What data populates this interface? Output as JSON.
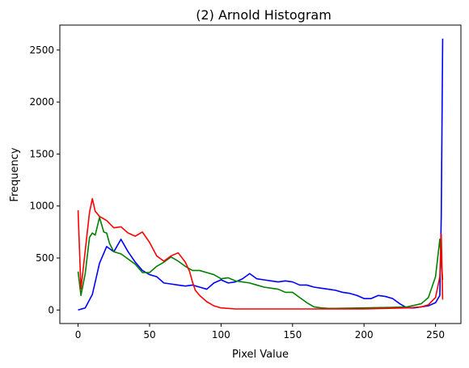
{
  "chart_data": {
    "type": "line",
    "title": "(2) Arnold Histogram",
    "xlabel": "Pixel Value",
    "ylabel": "Frequency",
    "xlim": [
      -12.75,
      267.75
    ],
    "ylim": [
      -130,
      2740
    ],
    "xticks": [
      0,
      50,
      100,
      150,
      200,
      250
    ],
    "yticks": [
      0,
      500,
      1000,
      1500,
      2000,
      2500
    ],
    "grid": false,
    "legend": "none",
    "series": [
      {
        "color": "#0000ff",
        "x": [
          0,
          5,
          10,
          15,
          20,
          25,
          30,
          35,
          40,
          45,
          50,
          55,
          60,
          65,
          70,
          75,
          80,
          85,
          90,
          95,
          100,
          105,
          110,
          115,
          120,
          125,
          130,
          135,
          140,
          145,
          150,
          155,
          160,
          165,
          170,
          175,
          180,
          185,
          190,
          195,
          200,
          205,
          210,
          215,
          220,
          225,
          230,
          235,
          240,
          245,
          250,
          253,
          254,
          255
        ],
        "y": [
          0,
          20,
          150,
          450,
          610,
          560,
          680,
          560,
          460,
          380,
          340,
          320,
          260,
          250,
          240,
          230,
          240,
          220,
          200,
          260,
          290,
          260,
          270,
          300,
          350,
          300,
          290,
          280,
          270,
          280,
          270,
          240,
          240,
          220,
          210,
          200,
          190,
          170,
          160,
          140,
          110,
          110,
          140,
          130,
          110,
          60,
          20,
          20,
          30,
          40,
          70,
          140,
          900,
          2610
        ]
      },
      {
        "color": "#008000",
        "x": [
          0,
          2,
          5,
          8,
          10,
          12,
          15,
          18,
          20,
          22,
          25,
          30,
          35,
          40,
          45,
          50,
          55,
          60,
          65,
          70,
          75,
          80,
          85,
          90,
          95,
          100,
          105,
          110,
          115,
          120,
          125,
          130,
          135,
          140,
          145,
          150,
          155,
          160,
          165,
          170,
          175,
          180,
          200,
          220,
          230,
          240,
          245,
          250,
          253,
          255
        ],
        "y": [
          370,
          140,
          350,
          700,
          740,
          720,
          890,
          750,
          740,
          640,
          560,
          540,
          490,
          440,
          360,
          360,
          420,
          460,
          510,
          470,
          420,
          380,
          380,
          360,
          340,
          300,
          310,
          280,
          270,
          260,
          240,
          220,
          210,
          200,
          170,
          170,
          120,
          70,
          30,
          20,
          15,
          15,
          20,
          25,
          30,
          60,
          120,
          320,
          680,
          290
        ]
      },
      {
        "color": "#ff0000",
        "x": [
          0,
          2,
          5,
          8,
          10,
          12,
          15,
          20,
          25,
          30,
          35,
          40,
          45,
          50,
          55,
          60,
          65,
          70,
          75,
          78,
          80,
          82,
          85,
          90,
          95,
          100,
          110,
          120,
          150,
          200,
          230,
          240,
          245,
          250,
          253,
          254,
          255
        ],
        "y": [
          960,
          200,
          570,
          940,
          1070,
          950,
          900,
          860,
          790,
          800,
          740,
          710,
          750,
          650,
          520,
          470,
          520,
          550,
          460,
          370,
          270,
          190,
          140,
          80,
          40,
          20,
          10,
          10,
          10,
          10,
          20,
          30,
          50,
          120,
          320,
          730,
          100
        ]
      }
    ]
  }
}
